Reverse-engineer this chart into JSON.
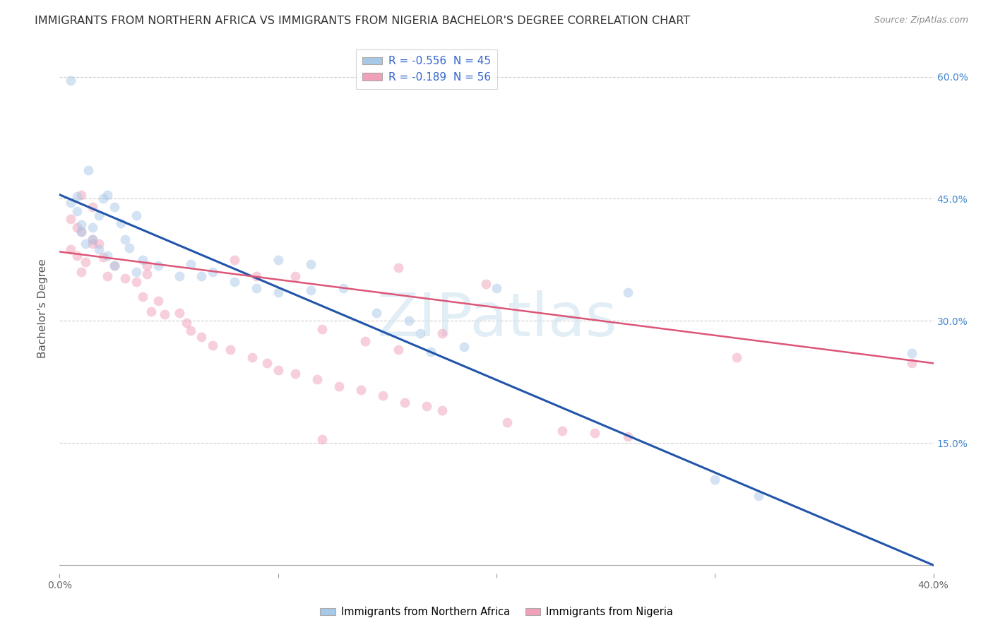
{
  "title": "IMMIGRANTS FROM NORTHERN AFRICA VS IMMIGRANTS FROM NIGERIA BACHELOR'S DEGREE CORRELATION CHART",
  "source": "Source: ZipAtlas.com",
  "xlabel_blue": "Immigrants from Northern Africa",
  "xlabel_pink": "Immigrants from Nigeria",
  "ylabel": "Bachelor's Degree",
  "legend_blue_R": "R = -0.556",
  "legend_blue_N": "N = 45",
  "legend_pink_R": "R = -0.189",
  "legend_pink_N": "N = 56",
  "blue_color": "#a8c8e8",
  "pink_color": "#f0a0b8",
  "blue_line_color": "#2255aa",
  "pink_line_color": "#dd5577",
  "legend_text_color": "#3366cc",
  "xlim": [
    0.0,
    0.4
  ],
  "ylim": [
    -0.01,
    0.64
  ],
  "yticks": [
    0.0,
    0.15,
    0.3,
    0.45,
    0.6
  ],
  "ytick_labels_right": [
    "",
    "15.0%",
    "30.0%",
    "45.0%",
    "60.0%"
  ],
  "xticks": [
    0.0,
    0.1,
    0.2,
    0.3,
    0.4
  ],
  "xtick_labels": [
    "0.0%",
    "",
    "",
    "",
    "40.0%"
  ],
  "grid_color": "#cccccc",
  "background_color": "#ffffff",
  "blue_dots": [
    [
      0.005,
      0.595
    ],
    [
      0.013,
      0.485
    ],
    [
      0.022,
      0.455
    ],
    [
      0.018,
      0.43
    ],
    [
      0.028,
      0.42
    ],
    [
      0.015,
      0.415
    ],
    [
      0.01,
      0.41
    ],
    [
      0.008,
      0.453
    ],
    [
      0.025,
      0.44
    ],
    [
      0.035,
      0.43
    ],
    [
      0.03,
      0.4
    ],
    [
      0.012,
      0.395
    ],
    [
      0.02,
      0.45
    ],
    [
      0.038,
      0.375
    ],
    [
      0.032,
      0.39
    ],
    [
      0.022,
      0.38
    ],
    [
      0.005,
      0.445
    ],
    [
      0.008,
      0.435
    ],
    [
      0.01,
      0.418
    ],
    [
      0.015,
      0.4
    ],
    [
      0.018,
      0.388
    ],
    [
      0.025,
      0.368
    ],
    [
      0.035,
      0.36
    ],
    [
      0.045,
      0.368
    ],
    [
      0.055,
      0.355
    ],
    [
      0.06,
      0.37
    ],
    [
      0.065,
      0.355
    ],
    [
      0.07,
      0.36
    ],
    [
      0.08,
      0.348
    ],
    [
      0.09,
      0.34
    ],
    [
      0.1,
      0.335
    ],
    [
      0.115,
      0.338
    ],
    [
      0.13,
      0.34
    ],
    [
      0.145,
      0.31
    ],
    [
      0.16,
      0.3
    ],
    [
      0.1,
      0.375
    ],
    [
      0.115,
      0.37
    ],
    [
      0.26,
      0.335
    ],
    [
      0.2,
      0.34
    ],
    [
      0.165,
      0.285
    ],
    [
      0.17,
      0.262
    ],
    [
      0.185,
      0.268
    ],
    [
      0.39,
      0.26
    ],
    [
      0.3,
      0.105
    ],
    [
      0.32,
      0.085
    ]
  ],
  "pink_dots": [
    [
      0.005,
      0.425
    ],
    [
      0.008,
      0.415
    ],
    [
      0.01,
      0.41
    ],
    [
      0.015,
      0.4
    ],
    [
      0.018,
      0.395
    ],
    [
      0.005,
      0.388
    ],
    [
      0.008,
      0.38
    ],
    [
      0.012,
      0.372
    ],
    [
      0.02,
      0.378
    ],
    [
      0.015,
      0.395
    ],
    [
      0.01,
      0.36
    ],
    [
      0.025,
      0.368
    ],
    [
      0.022,
      0.355
    ],
    [
      0.03,
      0.352
    ],
    [
      0.035,
      0.348
    ],
    [
      0.04,
      0.358
    ],
    [
      0.038,
      0.33
    ],
    [
      0.045,
      0.325
    ],
    [
      0.042,
      0.312
    ],
    [
      0.048,
      0.308
    ],
    [
      0.01,
      0.455
    ],
    [
      0.015,
      0.44
    ],
    [
      0.04,
      0.368
    ],
    [
      0.055,
      0.31
    ],
    [
      0.058,
      0.298
    ],
    [
      0.06,
      0.288
    ],
    [
      0.065,
      0.28
    ],
    [
      0.07,
      0.27
    ],
    [
      0.078,
      0.265
    ],
    [
      0.088,
      0.255
    ],
    [
      0.095,
      0.248
    ],
    [
      0.1,
      0.24
    ],
    [
      0.108,
      0.235
    ],
    [
      0.118,
      0.228
    ],
    [
      0.128,
      0.22
    ],
    [
      0.138,
      0.215
    ],
    [
      0.148,
      0.208
    ],
    [
      0.158,
      0.2
    ],
    [
      0.168,
      0.195
    ],
    [
      0.175,
      0.19
    ],
    [
      0.108,
      0.355
    ],
    [
      0.155,
      0.365
    ],
    [
      0.175,
      0.285
    ],
    [
      0.195,
      0.345
    ],
    [
      0.08,
      0.375
    ],
    [
      0.09,
      0.355
    ],
    [
      0.14,
      0.275
    ],
    [
      0.155,
      0.265
    ],
    [
      0.31,
      0.255
    ],
    [
      0.205,
      0.175
    ],
    [
      0.23,
      0.165
    ],
    [
      0.245,
      0.162
    ],
    [
      0.26,
      0.158
    ],
    [
      0.12,
      0.29
    ],
    [
      0.39,
      0.248
    ],
    [
      0.12,
      0.155
    ]
  ],
  "blue_line_x": [
    0.0,
    0.4
  ],
  "blue_line_y": [
    0.455,
    0.0
  ],
  "pink_line_x": [
    0.0,
    0.4
  ],
  "pink_line_y": [
    0.385,
    0.248
  ],
  "watermark": "ZIPatlas",
  "title_fontsize": 11.5,
  "ylabel_fontsize": 11,
  "tick_fontsize": 10,
  "dot_size": 100,
  "dot_alpha": 0.5
}
